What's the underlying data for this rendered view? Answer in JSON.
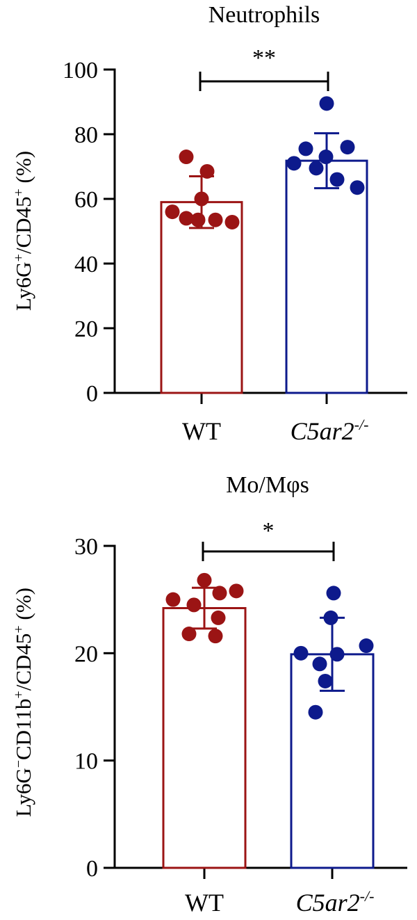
{
  "chart_data": [
    {
      "type": "bar",
      "title": "Neutrophils",
      "ylabel": {
        "base1": "Ly6G",
        "sup1": "+",
        "mid": "/CD45",
        "sup2": "+",
        "tail": " (%)"
      },
      "categories": [
        "WT",
        "C5ar2"
      ],
      "category_superscripts": [
        "",
        "-/-"
      ],
      "ylim": [
        0,
        100
      ],
      "yticks": [
        0,
        20,
        40,
        60,
        80,
        100
      ],
      "series": [
        {
          "values": [
            59,
            71.8
          ],
          "sd": [
            8,
            8.5
          ],
          "points": [
            [
              73,
              68.5,
              60,
              56,
              54,
              53.5,
              53.5,
              52.8
            ],
            [
              89.5,
              76,
              75.5,
              73,
              71,
              69.5,
              66,
              63.5
            ]
          ]
        }
      ],
      "significance": "**",
      "colors": [
        "#9b1414",
        "#0d1a8c"
      ]
    },
    {
      "type": "bar",
      "title": "Mo/Mφs",
      "ylabel": {
        "base1": "Ly6G",
        "sup1": "−",
        "mid": "CD11b",
        "sup2": "+",
        "mid2": "/CD45",
        "sup3": "+",
        "tail": " (%)"
      },
      "categories": [
        "WT",
        "C5ar2"
      ],
      "category_superscripts": [
        "",
        "-/-"
      ],
      "ylim": [
        0,
        30
      ],
      "yticks": [
        0,
        10,
        20,
        30
      ],
      "series": [
        {
          "values": [
            24.2,
            19.9
          ],
          "sd": [
            1.9,
            3.4
          ],
          "points": [
            [
              26.8,
              25.8,
              25.6,
              25,
              24.5,
              23.3,
              21.8,
              21.6
            ],
            [
              25.6,
              23.3,
              20.7,
              20,
              19.9,
              19,
              17.4,
              14.5
            ]
          ]
        }
      ],
      "significance": "*",
      "colors": [
        "#9b1414",
        "#0d1a8c"
      ]
    }
  ]
}
